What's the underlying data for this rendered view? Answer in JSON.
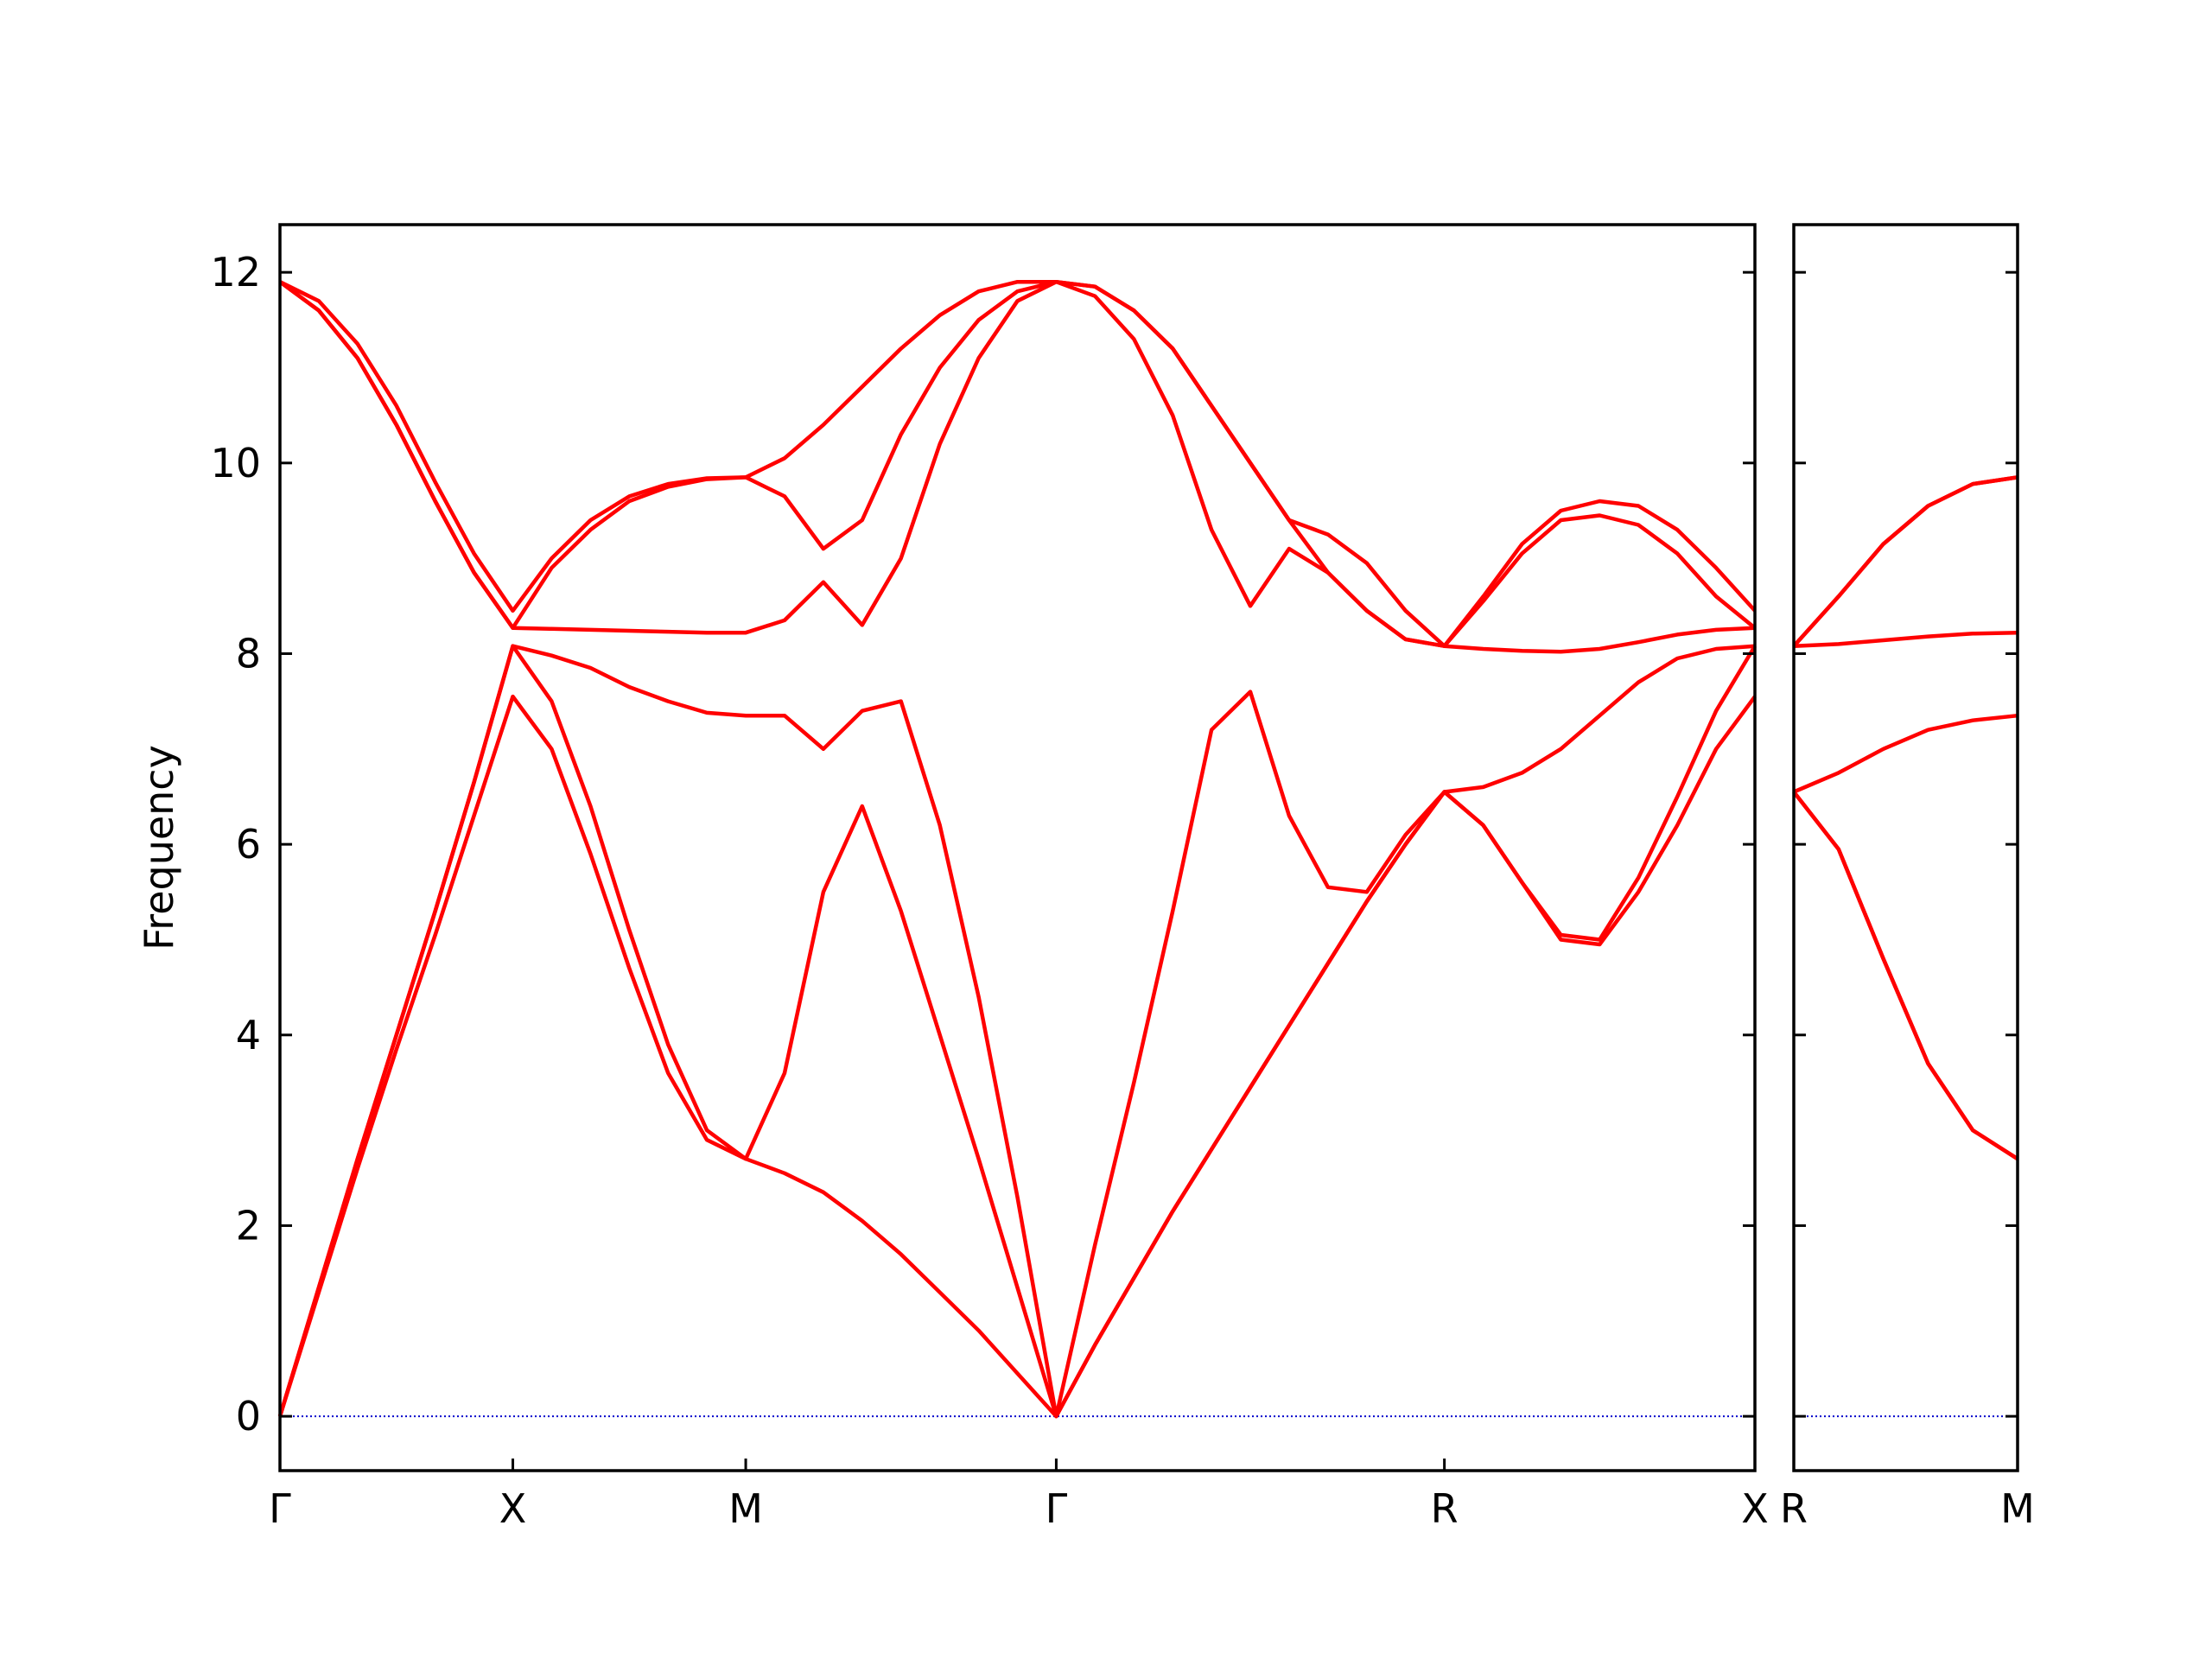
{
  "chart_data": [
    {
      "type": "line",
      "ylabel": "Frequency",
      "categories": [
        "Γ",
        null,
        null,
        null,
        null,
        null,
        "X",
        null,
        null,
        null,
        null,
        null,
        "M",
        null,
        null,
        null,
        null,
        null,
        null,
        null,
        "Γ",
        null,
        null,
        null,
        null,
        null,
        null,
        null,
        null,
        null,
        "R",
        null,
        null,
        null,
        null,
        null,
        null,
        null,
        "X"
      ],
      "series": [
        {
          "color": "#ff0000",
          "values": [
            0,
            1.3,
            2.6,
            3.85,
            5.05,
            6.3,
            7.55,
            7.0,
            5.9,
            4.7,
            3.6,
            2.9,
            2.7,
            2.55,
            2.35,
            2.05,
            1.7,
            1.3,
            0.9,
            0.45,
            0,
            0.75,
            1.45,
            2.15,
            2.8,
            3.45,
            4.1,
            4.75,
            5.4,
            6.0,
            6.55,
            6.2,
            5.6,
            5.0,
            4.95,
            5.5,
            6.2,
            7.0,
            7.55
          ]
        },
        {
          "color": "#ff0000",
          "values": [
            0,
            1.35,
            2.7,
            4.0,
            5.3,
            6.65,
            8.08,
            7.5,
            6.4,
            5.1,
            3.9,
            3.0,
            2.7,
            3.6,
            5.5,
            6.4,
            5.3,
            4.0,
            2.7,
            1.35,
            0,
            0.75,
            1.45,
            2.15,
            2.8,
            3.45,
            4.1,
            4.75,
            5.4,
            6.0,
            6.55,
            6.2,
            5.6,
            5.05,
            5.0,
            5.65,
            6.5,
            7.4,
            8.08
          ]
        },
        {
          "color": "#ff0000",
          "values": [
            0,
            1.35,
            2.7,
            4.0,
            5.3,
            6.65,
            8.08,
            7.98,
            7.85,
            7.65,
            7.5,
            7.38,
            7.35,
            7.35,
            7.0,
            7.4,
            7.5,
            6.2,
            4.4,
            2.3,
            0,
            1.8,
            3.5,
            5.3,
            7.2,
            7.6,
            6.3,
            5.55,
            5.5,
            6.1,
            6.55,
            6.6,
            6.75,
            7.0,
            7.35,
            7.7,
            7.95,
            8.05,
            8.08
          ]
        },
        {
          "color": "#ff0000",
          "values": [
            11.9,
            11.6,
            11.1,
            10.4,
            9.6,
            8.85,
            8.27,
            8.26,
            8.25,
            8.24,
            8.23,
            8.22,
            8.22,
            8.35,
            8.75,
            8.3,
            9.0,
            10.2,
            11.1,
            11.7,
            11.9,
            11.75,
            11.3,
            10.5,
            9.3,
            8.5,
            9.1,
            8.85,
            8.45,
            8.15,
            8.08,
            8.05,
            8.03,
            8.02,
            8.05,
            8.12,
            8.2,
            8.25,
            8.27
          ]
        },
        {
          "color": "#ff0000",
          "values": [
            11.9,
            11.6,
            11.1,
            10.4,
            9.6,
            8.85,
            8.27,
            8.9,
            9.3,
            9.6,
            9.75,
            9.83,
            9.85,
            9.65,
            9.1,
            9.4,
            10.3,
            11.0,
            11.5,
            11.8,
            11.9,
            11.85,
            11.6,
            11.2,
            10.6,
            10.0,
            9.4,
            8.85,
            8.45,
            8.15,
            8.08,
            8.55,
            9.05,
            9.4,
            9.45,
            9.35,
            9.05,
            8.6,
            8.27
          ]
        },
        {
          "color": "#ff0000",
          "values": [
            11.9,
            11.7,
            11.25,
            10.6,
            9.8,
            9.05,
            8.45,
            9.0,
            9.4,
            9.65,
            9.78,
            9.84,
            9.85,
            10.05,
            10.4,
            10.8,
            11.2,
            11.55,
            11.8,
            11.9,
            11.9,
            11.85,
            11.6,
            11.2,
            10.6,
            10.0,
            9.4,
            9.25,
            8.95,
            8.45,
            8.08,
            8.6,
            9.15,
            9.5,
            9.6,
            9.55,
            9.3,
            8.9,
            8.45
          ]
        }
      ],
      "ylim": [
        -0.57,
        12.5
      ],
      "yticks": [
        0,
        2,
        4,
        6,
        8,
        10,
        12
      ],
      "show_yticklabels": true,
      "reference_line": {
        "y": 0,
        "color": "#0000cc"
      }
    },
    {
      "type": "line",
      "categories": [
        "R",
        null,
        null,
        null,
        null,
        "M"
      ],
      "series": [
        {
          "color": "#ff0000",
          "values": [
            6.55,
            5.95,
            4.8,
            3.7,
            3.0,
            2.7
          ]
        },
        {
          "color": "#ff0000",
          "values": [
            6.55,
            5.95,
            4.8,
            3.7,
            3.0,
            2.7
          ]
        },
        {
          "color": "#ff0000",
          "values": [
            6.55,
            6.75,
            7.0,
            7.2,
            7.3,
            7.35
          ]
        },
        {
          "color": "#ff0000",
          "values": [
            8.08,
            8.1,
            8.14,
            8.18,
            8.21,
            8.22
          ]
        },
        {
          "color": "#ff0000",
          "values": [
            8.08,
            8.6,
            9.15,
            9.55,
            9.78,
            9.85
          ]
        },
        {
          "color": "#ff0000",
          "values": [
            8.08,
            8.6,
            9.15,
            9.55,
            9.78,
            9.85
          ]
        }
      ],
      "ylim": [
        -0.57,
        12.5
      ],
      "yticks": [
        0,
        2,
        4,
        6,
        8,
        10,
        12
      ],
      "show_yticklabels": false,
      "reference_line": {
        "y": 0,
        "color": "#0000cc"
      }
    }
  ]
}
